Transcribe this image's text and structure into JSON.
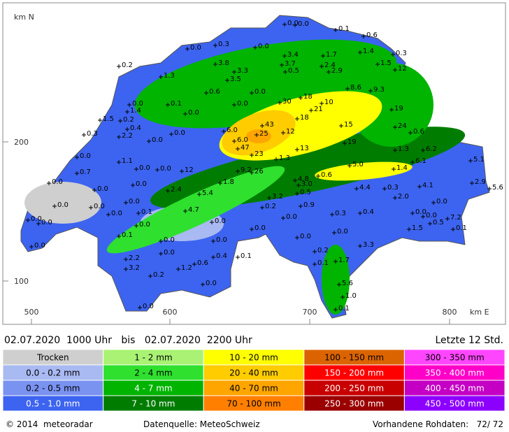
{
  "map": {
    "axes": {
      "north_label": "km N",
      "east_label": "km E",
      "y_labels": [
        "200",
        "100"
      ],
      "x_labels": [
        "500",
        "600",
        "700",
        "800"
      ]
    },
    "stations": [
      "0.0",
      "0.0",
      "0.1",
      "0.6",
      "0.3",
      "0.0",
      "0.0",
      "3.4",
      "1.7",
      "1.4",
      "0.3",
      "0.2",
      "3.8",
      "3.7",
      "2.4",
      "1.5",
      "12",
      "1.3",
      "3.3",
      "0.5",
      "2.9",
      "3.5",
      "8.6",
      "9.3",
      "0.6",
      "0.0",
      "0.0",
      "0.1",
      "30",
      "18",
      "10",
      "21",
      "1.4",
      "1.5",
      "0.2",
      "0.0",
      "0.0",
      "18",
      "19",
      "0.4",
      "2.2",
      "0.3",
      "0.0",
      "6.0",
      "43",
      "25",
      "12",
      "15",
      "24",
      "0.6",
      "6.0",
      "0.0",
      "47",
      "19",
      "13",
      "23",
      "1.3",
      "6.2",
      "0.0",
      "1.1",
      "1.3",
      "6.1",
      "5.1",
      "0.0",
      "0.0",
      "12",
      "9.2",
      "26",
      "5.0",
      "1.4",
      "0.7",
      "0.6",
      "4.8",
      "3.0",
      "1.8",
      "0.0",
      "0.0",
      "0.0",
      "2.4",
      "5.4",
      "0.5",
      "4.4",
      "0.3",
      "4.1",
      "2.9",
      "5.6",
      "0.0",
      "2.0",
      "3.2",
      "0.0",
      "0.0",
      "0.2",
      "0.9",
      "0.0",
      "4.7",
      "0.1",
      "0.0",
      "0.3",
      "0.4",
      "0.0",
      "0.0",
      "7.2",
      "0.0",
      "0.0",
      "0.0",
      "0.0",
      "0.0",
      "0.5",
      "0.1",
      "1.5",
      "0.0",
      "0.0",
      "0.1",
      "0.0",
      "0.0",
      "0.0",
      "3.3",
      "0.0",
      "0.2",
      "0.0",
      "0.4",
      "0.1",
      "0.1",
      "1.7",
      "2.2",
      "3.2",
      "0.6",
      "1.2",
      "0.2",
      "0.0",
      "5.6",
      "1.0",
      "0.0",
      "0.1"
    ]
  },
  "header": {
    "period": "02.07.2020  1000 Uhr   bis   02.07.2020  2200 Uhr",
    "window": "Letzte 12 Std."
  },
  "legend": [
    {
      "label": "Trocken",
      "color": "#cfcfcf"
    },
    {
      "label": "0.0 - 0.2 mm",
      "color": "#a9b9f2"
    },
    {
      "label": "0.2 - 0.5 mm",
      "color": "#7a92f0"
    },
    {
      "label": "0.5 - 1.0 mm",
      "color": "#3d64f0"
    },
    {
      "label": "1 - 2 mm",
      "color": "#a9f274"
    },
    {
      "label": "2 - 4 mm",
      "color": "#2fe02f"
    },
    {
      "label": "4 - 7 mm",
      "color": "#00b400"
    },
    {
      "label": "7 - 10 mm",
      "color": "#007d00"
    },
    {
      "label": "10 - 20 mm",
      "color": "#ffff00"
    },
    {
      "label": "20 - 40 mm",
      "color": "#ffcc00"
    },
    {
      "label": "40 - 70 mm",
      "color": "#ffa500"
    },
    {
      "label": "70 - 100 mm",
      "color": "#ff7f00"
    },
    {
      "label": "100 - 150 mm",
      "color": "#dc6400"
    },
    {
      "label": "150 - 200 mm",
      "color": "#ff0000"
    },
    {
      "label": "200 - 250 mm",
      "color": "#c80000"
    },
    {
      "label": "250 - 300 mm",
      "color": "#9b0000"
    },
    {
      "label": "300 - 350 mm",
      "color": "#ff46ff"
    },
    {
      "label": "350 - 400 mm",
      "color": "#ff00c8"
    },
    {
      "label": "400 - 450 mm",
      "color": "#c300c3"
    },
    {
      "label": "450 - 500 mm",
      "color": "#8c00ff"
    }
  ],
  "footer": {
    "copyright": "© 2014  meteoradar",
    "source": "Datenquelle: MeteoSchweiz",
    "raw_data": "Vorhandene Rohdaten:   72/ 72"
  }
}
